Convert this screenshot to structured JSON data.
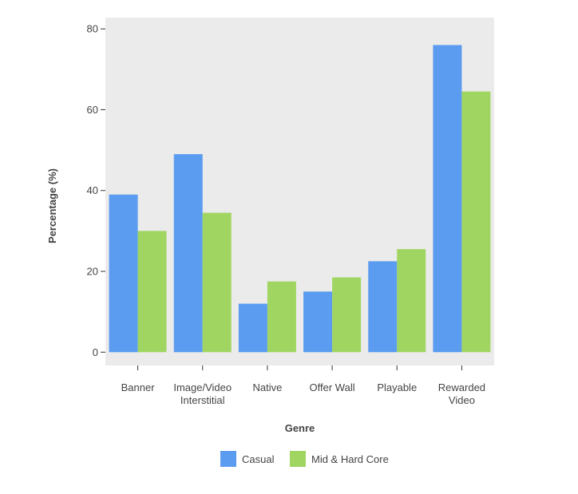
{
  "chart_data": {
    "type": "bar",
    "categories": [
      [
        "Banner"
      ],
      [
        "Image/Video",
        "Interstitial"
      ],
      [
        "Native"
      ],
      [
        "Offer Wall"
      ],
      [
        "Playable"
      ],
      [
        "Rewarded",
        "Video"
      ]
    ],
    "series": [
      {
        "name": "Casual",
        "color": "#5b9cf0",
        "values": [
          39,
          49,
          12,
          15,
          22.5,
          76
        ]
      },
      {
        "name": "Mid & Hard Core",
        "color": "#a1d562",
        "values": [
          30,
          34.5,
          17.5,
          18.5,
          25.5,
          64.5
        ]
      }
    ],
    "title": "",
    "xlabel": "Genre",
    "ylabel": "Percentage (%)",
    "ylim": [
      -3.3,
      82.8
    ],
    "yticks": [
      0,
      20,
      40,
      60,
      80
    ],
    "grid": false,
    "panel_background": "#ebebeb",
    "legend_position": "bottom"
  }
}
